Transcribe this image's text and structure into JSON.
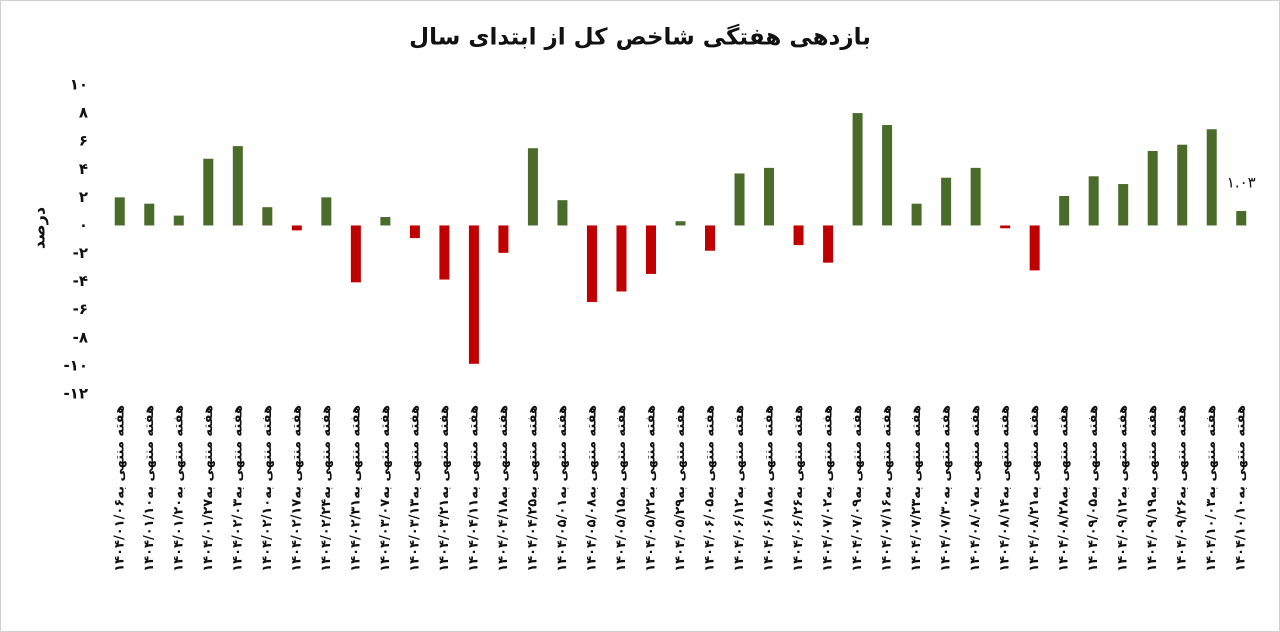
{
  "chart_data": {
    "type": "bar",
    "title": "بازدهی هفتگی شاخص کل از ابتدای سال",
    "y_label": "درصد",
    "categories": [
      "هفته منتهی به۱۴۰۴/۰۱/۰۶",
      "هفته منتهی به۱۴۰۴/۰۱/۱۰",
      "هفته منتهی به۱۴۰۴/۰۱/۲۰",
      "هفته منتهی به۱۴۰۴/۰۱/۲۷",
      "هفته منتهی به۱۴۰۴/۰۲/۰۳",
      "هفته منتهی به۱۴۰۴/۰۲/۱۰",
      "هفته منتهی به۱۴۰۴/۰۲/۱۷",
      "هفته منتهی به۱۴۰۴/۰۲/۲۴",
      "هفته منتهی به۱۴۰۴/۰۲/۳۱",
      "هفته منتهی به۱۴۰۴/۰۳/۰۷",
      "هفته منتهی به۱۴۰۴/۰۳/۱۳",
      "هفته منتهی به۱۴۰۴/۰۳/۲۱",
      "هفته منتهی به۱۴۰۴/۰۴/۱۱",
      "هفته منتهی به۱۴۰۴/۰۴/۱۸",
      "هفته منتهی به۱۴۰۴/۰۴/۲۵",
      "هفته منتهی به۱۴۰۴/۰۵/۰۱",
      "هفته منتهی به۱۴۰۴/۰۵/۰۸",
      "هفته منتهی به۱۴۰۴/۰۵/۱۵",
      "هفته منتهی به۱۴۰۴/۰۵/۲۲",
      "هفته منتهی به۱۴۰۴/۰۵/۲۹",
      "هفته منتهی به۱۴۰۴/۰۶/۰۵",
      "هفته منتهی به۱۴۰۴/۰۶/۱۲",
      "هفته منتهی به۱۴۰۴/۰۶/۱۸",
      "هفته منتهی به۱۴۰۴/۰۶/۲۶",
      "هفته منتهی به۱۴۰۴/۰۷/۰۲",
      "هفته منتهی به۱۴۰۴/۰۷/۰۹",
      "هفته منتهی به۱۴۰۴/۰۷/۱۶",
      "هفته منتهی به۱۴۰۴/۰۷/۲۳",
      "هفته منتهی به۱۴۰۴/۰۷/۳۰",
      "هفته منتهی به۱۴۰۴/۰۸/۰۷",
      "هفته منتهی به۱۴۰۴/۰۸/۱۴",
      "هفته منتهی به۱۴۰۴/۰۸/۲۱",
      "هفته منتهی به۱۴۰۴/۰۸/۲۸",
      "هفته منتهی به۱۴۰۴/۰۹/۰۵",
      "هفته منتهی به۱۴۰۴/۰۹/۱۲",
      "هفته منتهی به۱۴۰۴/۰۹/۱۹",
      "هفته منتهی به۱۴۰۴/۰۹/۲۶",
      "هفته منتهی به۱۴۰۴/۱۰/۰۳",
      "هفته منتهی به۱۴۰۴/۱۰/۱۰"
    ],
    "values": [
      2.0,
      1.55,
      0.7,
      4.75,
      5.65,
      1.3,
      -0.35,
      2.0,
      -4.05,
      0.6,
      -0.9,
      -3.85,
      -9.85,
      -1.95,
      5.5,
      1.8,
      -5.45,
      -4.7,
      -3.45,
      0.3,
      -1.8,
      3.7,
      4.1,
      -1.4,
      -2.65,
      8.0,
      7.15,
      1.55,
      3.4,
      4.1,
      -0.2,
      -3.2,
      2.1,
      3.5,
      2.95,
      5.3,
      5.75,
      6.85,
      1.03
    ],
    "value_labels": [
      null,
      null,
      null,
      null,
      null,
      null,
      null,
      null,
      null,
      null,
      null,
      null,
      null,
      null,
      null,
      null,
      null,
      null,
      null,
      null,
      null,
      null,
      null,
      null,
      null,
      null,
      null,
      null,
      null,
      null,
      null,
      null,
      null,
      null,
      null,
      null,
      null,
      null,
      "۱.۰۳"
    ],
    "positive_color": "#4b6b2b",
    "negative_color": "#c00000",
    "ylim": [
      -12,
      10
    ],
    "yticks": [
      {
        "value": 10,
        "label": "۱۰"
      },
      {
        "value": 8,
        "label": "۸"
      },
      {
        "value": 6,
        "label": "۶"
      },
      {
        "value": 4,
        "label": "۴"
      },
      {
        "value": 2,
        "label": "۲"
      },
      {
        "value": 0,
        "label": "۰"
      },
      {
        "value": -2,
        "label": "-۲"
      },
      {
        "value": -4,
        "label": "-۴"
      },
      {
        "value": -6,
        "label": "-۶"
      },
      {
        "value": -8,
        "label": "-۸"
      },
      {
        "value": -10,
        "label": "-۱۰"
      },
      {
        "value": -12,
        "label": "-۱۲"
      }
    ],
    "grid": false
  }
}
